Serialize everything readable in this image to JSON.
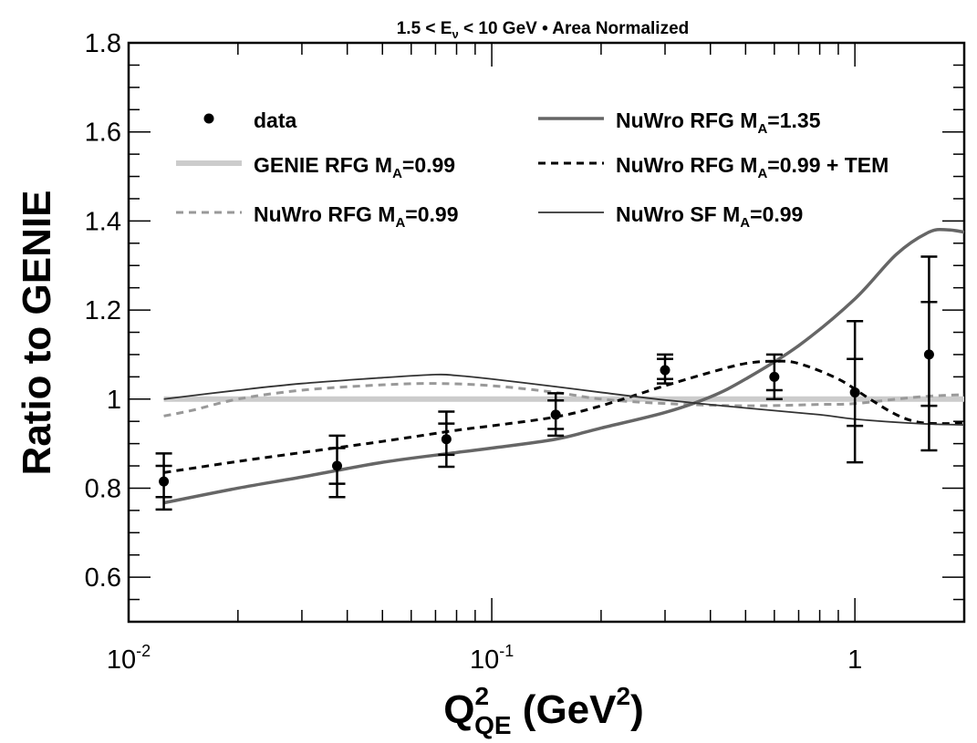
{
  "chart_data": {
    "type": "line",
    "title": "1.5 < E_ν < 10 GeV • Area Normalized",
    "title_parts": {
      "prefix": "1.5 < E",
      "sub": "ν",
      "suffix": " < 10 GeV • Area Normalized"
    },
    "xlabel": "Q²_QE (GeV²)",
    "xlabel_parts": {
      "main": "Q",
      "sup": "2",
      "sub": "QE",
      "unit_prefix": " (GeV",
      "unit_sup": "2",
      "unit_suffix": ")"
    },
    "ylabel": "Ratio to GENIE",
    "x_scale": "log",
    "xlim": [
      0.01,
      2.0
    ],
    "ylim": [
      0.5,
      1.8
    ],
    "x_ticks": [
      {
        "value": 0.01,
        "base": "10",
        "exp": "-2"
      },
      {
        "value": 0.1,
        "base": "10",
        "exp": "-1"
      },
      {
        "value": 1,
        "base": "1",
        "exp": ""
      }
    ],
    "y_ticks": [
      {
        "value": 0.6,
        "label": "0.6"
      },
      {
        "value": 0.8,
        "label": "0.8"
      },
      {
        "value": 1.0,
        "label": "1"
      },
      {
        "value": 1.2,
        "label": "1.2"
      },
      {
        "value": 1.4,
        "label": "1.4"
      },
      {
        "value": 1.6,
        "label": "1.6"
      },
      {
        "value": 1.8,
        "label": "1.8"
      }
    ],
    "legend_position": "top",
    "data": {
      "name": "data",
      "points": [
        {
          "x": 0.0125,
          "y": 0.815,
          "inner": [
            0.78,
            0.85
          ],
          "outer": [
            0.752,
            0.878
          ]
        },
        {
          "x": 0.0375,
          "y": 0.85,
          "inner": [
            0.81,
            0.89
          ],
          "outer": [
            0.78,
            0.918
          ]
        },
        {
          "x": 0.075,
          "y": 0.91,
          "inner": [
            0.875,
            0.945
          ],
          "outer": [
            0.848,
            0.972
          ]
        },
        {
          "x": 0.15,
          "y": 0.965,
          "inner": [
            0.933,
            0.997
          ],
          "outer": [
            0.918,
            1.013
          ]
        },
        {
          "x": 0.3,
          "y": 1.065,
          "inner": [
            1.045,
            1.09
          ],
          "outer": [
            1.035,
            1.1
          ]
        },
        {
          "x": 0.6,
          "y": 1.05,
          "inner": [
            1.02,
            1.085
          ],
          "outer": [
            1.0,
            1.1
          ]
        },
        {
          "x": 1.0,
          "y": 1.015,
          "inner": [
            0.94,
            1.09
          ],
          "outer": [
            0.858,
            1.175
          ]
        },
        {
          "x": 1.6,
          "y": 1.1,
          "inner": [
            0.985,
            1.218
          ],
          "outer": [
            0.885,
            1.32
          ]
        }
      ]
    },
    "series": [
      {
        "name": "GENIE RFG M_A=0.99",
        "legend_parts": {
          "prefix": "GENIE RFG M",
          "sub": "A",
          "suffix": "=0.99"
        },
        "color": "#cccccc",
        "style": "thick",
        "x": [
          0.0125,
          2.0
        ],
        "y": [
          1.0,
          1.0
        ]
      },
      {
        "name": "NuWro RFG M_A=0.99",
        "legend_parts": {
          "prefix": "NuWro RFG M",
          "sub": "A",
          "suffix": "=0.99"
        },
        "color": "#999999",
        "style": "dashed-grey",
        "x": [
          0.0125,
          0.015,
          0.02,
          0.03,
          0.05,
          0.07,
          0.1,
          0.15,
          0.2,
          0.3,
          0.5,
          0.8,
          1.0,
          1.5,
          2.0
        ],
        "y": [
          0.962,
          0.975,
          1.0,
          1.02,
          1.032,
          1.035,
          1.03,
          1.015,
          1.0,
          0.99,
          0.985,
          0.988,
          0.99,
          1.005,
          1.01
        ]
      },
      {
        "name": "NuWro RFG M_A=1.35",
        "legend_parts": {
          "prefix": "NuWro RFG M",
          "sub": "A",
          "suffix": "=1.35"
        },
        "color": "#666666",
        "style": "thick-dark",
        "x": [
          0.0125,
          0.02,
          0.03,
          0.05,
          0.08,
          0.1,
          0.15,
          0.2,
          0.3,
          0.4,
          0.5,
          0.7,
          1.0,
          1.3,
          1.6,
          1.8,
          2.0
        ],
        "y": [
          0.767,
          0.8,
          0.825,
          0.858,
          0.88,
          0.89,
          0.91,
          0.935,
          0.97,
          1.005,
          1.045,
          1.12,
          1.225,
          1.325,
          1.375,
          1.38,
          1.375
        ]
      },
      {
        "name": "NuWro RFG M_A=0.99 + TEM",
        "legend_parts": {
          "prefix": "NuWro RFG M",
          "sub": "A",
          "suffix": "=0.99 + TEM"
        },
        "color": "#000000",
        "style": "dashed-black",
        "x": [
          0.0125,
          0.02,
          0.03,
          0.05,
          0.08,
          0.1,
          0.15,
          0.2,
          0.3,
          0.4,
          0.5,
          0.6,
          0.7,
          0.9,
          1.1,
          1.3,
          1.5,
          1.8,
          2.0
        ],
        "y": [
          0.835,
          0.86,
          0.88,
          0.905,
          0.93,
          0.94,
          0.96,
          0.985,
          1.03,
          1.06,
          1.08,
          1.085,
          1.08,
          1.045,
          1.0,
          0.965,
          0.948,
          0.945,
          0.948
        ]
      },
      {
        "name": "NuWro SF M_A=0.99",
        "legend_parts": {
          "prefix": "NuWro SF M",
          "sub": "A",
          "suffix": "=0.99"
        },
        "color": "#333333",
        "style": "thin",
        "x": [
          0.0125,
          0.02,
          0.03,
          0.05,
          0.07,
          0.08,
          0.1,
          0.15,
          0.2,
          0.3,
          0.5,
          0.8,
          1.0,
          1.5,
          2.0
        ],
        "y": [
          1.0,
          1.02,
          1.035,
          1.048,
          1.055,
          1.053,
          1.045,
          1.028,
          1.015,
          0.998,
          0.98,
          0.965,
          0.955,
          0.945,
          0.942
        ]
      }
    ],
    "legend_order": [
      "data",
      "NuWro RFG M_A=1.35",
      "GENIE RFG M_A=0.99",
      "NuWro RFG M_A=0.99 + TEM",
      "NuWro RFG M_A=0.99",
      "NuWro SF M_A=0.99"
    ]
  }
}
